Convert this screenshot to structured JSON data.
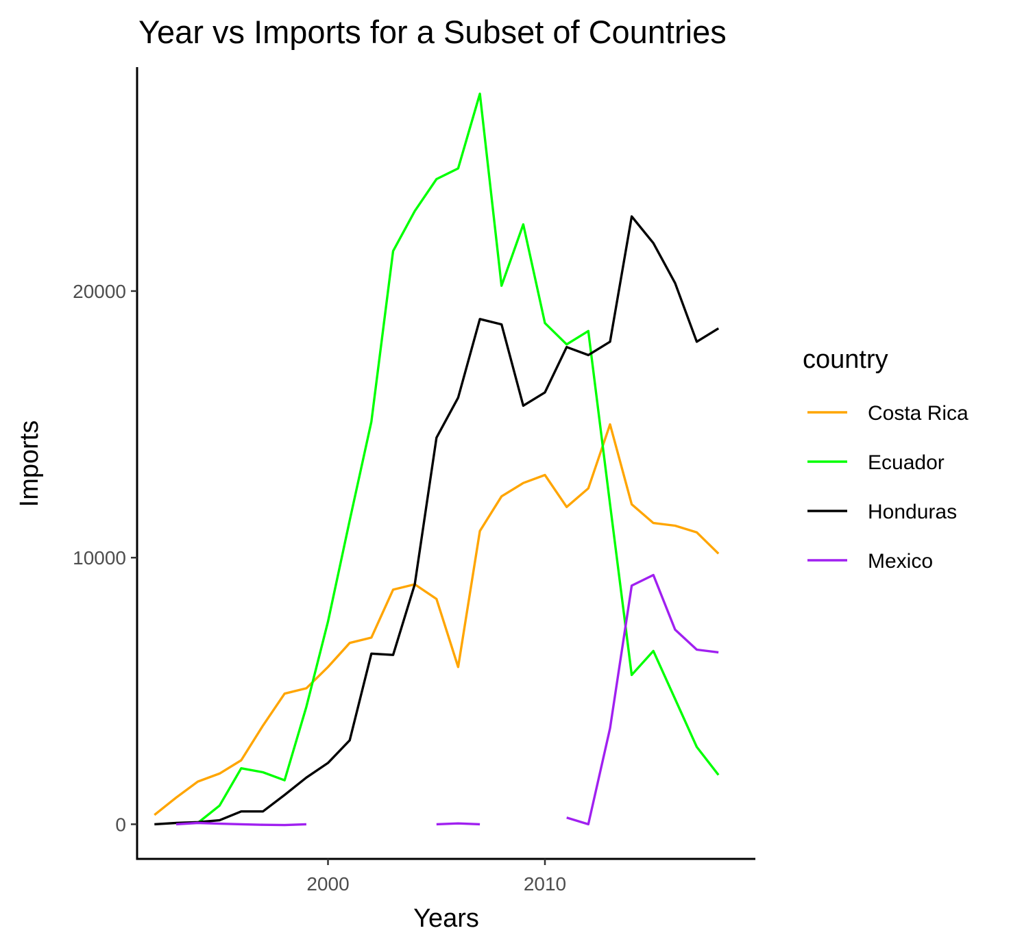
{
  "chart_data": {
    "type": "line",
    "title": "Year vs Imports for a Subset of Countries",
    "xlabel": "Years",
    "ylabel": "Imports",
    "xlim": [
      1991.2,
      2019.7
    ],
    "ylim": [
      -1300,
      28400
    ],
    "x_ticks": [
      2000,
      2010
    ],
    "y_ticks": [
      0,
      10000,
      20000
    ],
    "x_tick_labels": [
      "2000",
      "2010"
    ],
    "y_tick_labels": [
      "0",
      "10000",
      "20000"
    ],
    "grid": false,
    "legend": {
      "title": "country",
      "position": "right"
    },
    "series": [
      {
        "name": "Costa Rica",
        "color": "#FFA500",
        "points": [
          [
            1992,
            350
          ],
          [
            1993,
            1000
          ],
          [
            1994,
            1600
          ],
          [
            1995,
            1900
          ],
          [
            1996,
            2400
          ],
          [
            1997,
            3700
          ],
          [
            1998,
            4900
          ],
          [
            1999,
            5100
          ],
          [
            2000,
            5900
          ],
          [
            2001,
            6800
          ],
          [
            2002,
            7000
          ],
          [
            2003,
            8800
          ],
          [
            2004,
            9000
          ],
          [
            2005,
            8450
          ],
          [
            2006,
            5900
          ],
          [
            2007,
            11000
          ],
          [
            2008,
            12300
          ],
          [
            2009,
            12800
          ],
          [
            2010,
            13100
          ],
          [
            2011,
            11900
          ],
          [
            2012,
            12600
          ],
          [
            2013,
            15000
          ],
          [
            2014,
            12000
          ],
          [
            2015,
            11300
          ],
          [
            2016,
            11200
          ],
          [
            2017,
            10950
          ],
          [
            2018,
            10150
          ]
        ]
      },
      {
        "name": "Ecuador",
        "color": "#00FF00",
        "points": [
          [
            1994,
            50
          ],
          [
            1995,
            700
          ],
          [
            1996,
            2100
          ],
          [
            1997,
            1950
          ],
          [
            1998,
            1650
          ],
          [
            1999,
            4400
          ],
          [
            2000,
            7600
          ],
          [
            2001,
            11400
          ],
          [
            2002,
            15100
          ],
          [
            2003,
            21500
          ],
          [
            2004,
            23000
          ],
          [
            2005,
            24200
          ],
          [
            2006,
            24600
          ],
          [
            2007,
            27400
          ],
          [
            2008,
            20200
          ],
          [
            2009,
            22500
          ],
          [
            2010,
            18800
          ],
          [
            2011,
            18000
          ],
          [
            2012,
            18500
          ],
          [
            2013,
            12000
          ],
          [
            2014,
            5600
          ],
          [
            2015,
            6500
          ],
          [
            2016,
            4700
          ],
          [
            2017,
            2900
          ],
          [
            2018,
            1850
          ]
        ]
      },
      {
        "name": "Honduras",
        "color": "#000000",
        "points": [
          [
            1992,
            0
          ],
          [
            1993,
            50
          ],
          [
            1994,
            80
          ],
          [
            1995,
            150
          ],
          [
            1996,
            480
          ],
          [
            1997,
            480
          ],
          [
            1998,
            1100
          ],
          [
            1999,
            1750
          ],
          [
            2000,
            2300
          ],
          [
            2001,
            3150
          ],
          [
            2002,
            6400
          ],
          [
            2003,
            6350
          ],
          [
            2004,
            9000
          ],
          [
            2005,
            14500
          ],
          [
            2006,
            16000
          ],
          [
            2007,
            18950
          ],
          [
            2008,
            18750
          ],
          [
            2009,
            15700
          ],
          [
            2010,
            16200
          ],
          [
            2011,
            17900
          ],
          [
            2012,
            17600
          ],
          [
            2013,
            18100
          ],
          [
            2014,
            22800
          ],
          [
            2015,
            21800
          ],
          [
            2016,
            20300
          ],
          [
            2017,
            18100
          ],
          [
            2018,
            18600
          ]
        ]
      },
      {
        "name": "Mexico",
        "color": "#A020F0",
        "segments": [
          [
            [
              1993,
              0
            ],
            [
              1994,
              50
            ],
            [
              1995,
              20
            ],
            [
              1996,
              0
            ],
            [
              1997,
              -20
            ],
            [
              1998,
              -30
            ],
            [
              1999,
              0
            ]
          ],
          [
            [
              2005,
              0
            ],
            [
              2006,
              30
            ],
            [
              2007,
              0
            ]
          ],
          [
            [
              2011,
              250
            ],
            [
              2012,
              0
            ],
            [
              2013,
              3600
            ],
            [
              2014,
              8950
            ],
            [
              2015,
              9350
            ],
            [
              2016,
              7300
            ],
            [
              2017,
              6550
            ],
            [
              2018,
              6450
            ]
          ]
        ]
      }
    ]
  }
}
